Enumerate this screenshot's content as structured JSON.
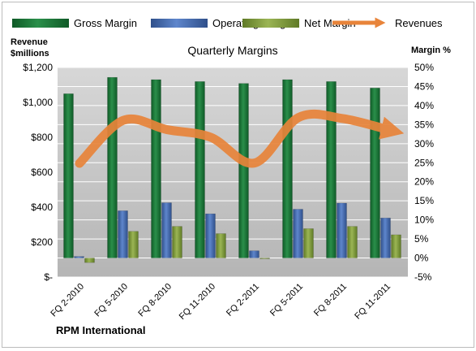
{
  "company": "RPM International",
  "chart_data": {
    "type": "bar",
    "title": "Quarterly Margins",
    "categories": [
      "FQ 2-2010",
      "FQ 5-2010",
      "FQ 8-2010",
      "FQ 11-2010",
      "FQ 2-2011",
      "FQ 5-2011",
      "FQ 8-2011",
      "FQ 11-2011"
    ],
    "y_left": {
      "label_line1": "Revenue",
      "label_line2": "$millions",
      "range": [
        0,
        1200
      ],
      "ticks": [
        0,
        200,
        400,
        600,
        800,
        1000,
        1200
      ],
      "tick_labels": [
        "$-",
        "$200",
        "$400",
        "$600",
        "$800",
        "$1,000",
        "$1,200"
      ]
    },
    "y_right": {
      "label": "Margin %",
      "range": [
        -5,
        50
      ],
      "ticks": [
        -5,
        0,
        5,
        10,
        15,
        20,
        25,
        30,
        35,
        40,
        45,
        50
      ],
      "tick_labels": [
        "-5%",
        "0%",
        "5%",
        "10%",
        "15%",
        "20%",
        "25%",
        "30%",
        "35%",
        "40%",
        "45%",
        "50%"
      ]
    },
    "series": [
      {
        "name": "Gross Margin",
        "kind": "bar",
        "axis": "right",
        "color": "#1f7a3c",
        "values": [
          43.1,
          47.4,
          46.8,
          46.3,
          45.8,
          46.8,
          46.3,
          44.6
        ]
      },
      {
        "name": "Operating Margin",
        "kind": "bar",
        "axis": "right",
        "color": "#4a72b8",
        "values": [
          0.4,
          12.4,
          14.5,
          11.6,
          1.9,
          12.8,
          14.4,
          10.5
        ]
      },
      {
        "name": "Net Margin",
        "kind": "bar",
        "axis": "right",
        "color": "#7f9a3a",
        "values": [
          -1.2,
          7.0,
          8.3,
          6.4,
          -0.2,
          7.7,
          8.3,
          6.1
        ]
      },
      {
        "name": "Revenues",
        "kind": "line",
        "axis": "left",
        "color": "#e8843a",
        "values": [
          651,
          897,
          844,
          800,
          653,
          913,
          908,
          847
        ]
      }
    ],
    "legend": {
      "placement": "top"
    },
    "grid": true
  },
  "colors": {
    "plot_background": "#c0c0c0",
    "gridline": "#ffffff"
  }
}
